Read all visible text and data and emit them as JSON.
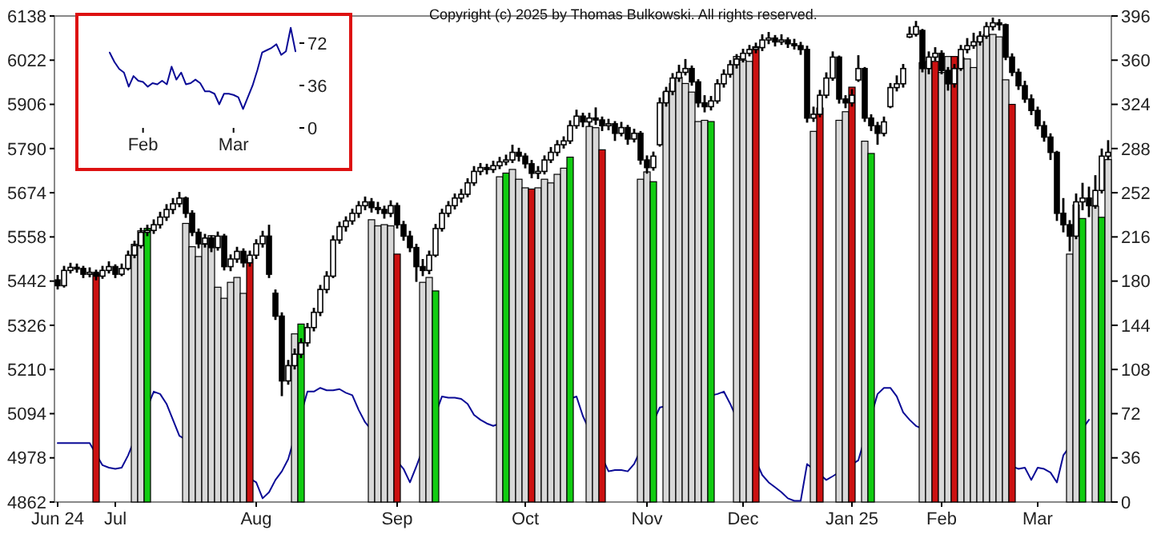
{
  "chart_data": [
    {
      "type": "candlestick",
      "categories": [
        "Jun 24",
        null,
        null,
        null,
        null,
        null,
        null,
        null,
        null,
        "Jul",
        null,
        null,
        null,
        null,
        null,
        null,
        null,
        null,
        null,
        null,
        null,
        null,
        null,
        null,
        null,
        null,
        null,
        null,
        null,
        null,
        null,
        "Aug",
        null,
        null,
        null,
        null,
        null,
        null,
        null,
        null,
        null,
        null,
        null,
        null,
        null,
        null,
        null,
        null,
        null,
        null,
        null,
        null,
        null,
        "Sep",
        null,
        null,
        null,
        null,
        null,
        null,
        null,
        null,
        null,
        null,
        null,
        null,
        null,
        null,
        null,
        null,
        null,
        null,
        null,
        "Oct",
        null,
        null,
        null,
        null,
        null,
        null,
        null,
        null,
        null,
        null,
        null,
        null,
        null,
        null,
        null,
        null,
        null,
        null,
        "Nov",
        null,
        null,
        null,
        null,
        null,
        null,
        null,
        null,
        null,
        null,
        null,
        null,
        null,
        null,
        "Dec",
        null,
        null,
        null,
        null,
        null,
        null,
        null,
        null,
        null,
        null,
        null,
        null,
        null,
        null,
        null,
        null,
        "Jan 25",
        null,
        null,
        null,
        null,
        null,
        null,
        null,
        null,
        null,
        null,
        null,
        null,
        null,
        "Feb",
        null,
        null,
        null,
        null,
        null,
        null,
        null,
        null,
        null,
        null,
        null,
        null,
        null,
        null,
        "Mar",
        null,
        null,
        null,
        null,
        null,
        null,
        null,
        null,
        null,
        null,
        null
      ],
      "ohlc": [
        [
          5445,
          5458,
          5420,
          5430
        ],
        [
          5430,
          5482,
          5425,
          5470
        ],
        [
          5470,
          5490,
          5462,
          5478
        ],
        [
          5478,
          5488,
          5464,
          5475
        ],
        [
          5475,
          5482,
          5450,
          5460
        ],
        [
          5460,
          5478,
          5452,
          5465
        ],
        [
          5465,
          5472,
          5444,
          5455
        ],
        [
          5455,
          5482,
          5448,
          5470
        ],
        [
          5470,
          5494,
          5462,
          5480
        ],
        [
          5480,
          5486,
          5450,
          5460
        ],
        [
          5460,
          5488,
          5455,
          5475
        ],
        [
          5475,
          5522,
          5470,
          5510
        ],
        [
          5510,
          5548,
          5502,
          5535
        ],
        [
          5535,
          5582,
          5528,
          5570
        ],
        [
          5570,
          5590,
          5560,
          5575
        ],
        [
          5575,
          5604,
          5566,
          5590
        ],
        [
          5590,
          5624,
          5580,
          5610
        ],
        [
          5610,
          5644,
          5600,
          5630
        ],
        [
          5630,
          5660,
          5618,
          5645
        ],
        [
          5645,
          5676,
          5636,
          5660
        ],
        [
          5660,
          5664,
          5608,
          5620
        ],
        [
          5620,
          5628,
          5560,
          5570
        ],
        [
          5570,
          5580,
          5528,
          5540
        ],
        [
          5540,
          5566,
          5530,
          5555
        ],
        [
          5555,
          5562,
          5518,
          5530
        ],
        [
          5530,
          5572,
          5522,
          5560
        ],
        [
          5560,
          5566,
          5470,
          5480
        ],
        [
          5480,
          5512,
          5468,
          5500
        ],
        [
          5500,
          5532,
          5490,
          5520
        ],
        [
          5520,
          5528,
          5478,
          5490
        ],
        [
          5490,
          5522,
          5480,
          5510
        ],
        [
          5510,
          5552,
          5500,
          5540
        ],
        [
          5540,
          5574,
          5530,
          5560
        ],
        [
          5560,
          5590,
          5450,
          5460
        ],
        [
          5410,
          5420,
          5340,
          5350
        ],
        [
          5350,
          5360,
          5140,
          5180
        ],
        [
          5180,
          5235,
          5170,
          5220
        ],
        [
          5220,
          5265,
          5210,
          5250
        ],
        [
          5250,
          5292,
          5240,
          5280
        ],
        [
          5280,
          5332,
          5270,
          5320
        ],
        [
          5320,
          5372,
          5310,
          5360
        ],
        [
          5360,
          5432,
          5350,
          5420
        ],
        [
          5420,
          5468,
          5410,
          5455
        ],
        [
          5455,
          5562,
          5450,
          5550
        ],
        [
          5550,
          5598,
          5540,
          5585
        ],
        [
          5585,
          5612,
          5572,
          5600
        ],
        [
          5600,
          5632,
          5590,
          5620
        ],
        [
          5620,
          5652,
          5608,
          5640
        ],
        [
          5640,
          5664,
          5628,
          5650
        ],
        [
          5650,
          5660,
          5622,
          5635
        ],
        [
          5635,
          5650,
          5618,
          5630
        ],
        [
          5630,
          5640,
          5606,
          5620
        ],
        [
          5620,
          5654,
          5610,
          5640
        ],
        [
          5640,
          5648,
          5580,
          5590
        ],
        [
          5590,
          5600,
          5548,
          5560
        ],
        [
          5560,
          5574,
          5518,
          5530
        ],
        [
          5530,
          5540,
          5440,
          5480
        ],
        [
          5480,
          5500,
          5455,
          5470
        ],
        [
          5470,
          5522,
          5460,
          5510
        ],
        [
          5510,
          5592,
          5505,
          5580
        ],
        [
          5580,
          5632,
          5572,
          5620
        ],
        [
          5620,
          5652,
          5610,
          5640
        ],
        [
          5640,
          5672,
          5630,
          5660
        ],
        [
          5660,
          5684,
          5648,
          5670
        ],
        [
          5670,
          5712,
          5662,
          5700
        ],
        [
          5700,
          5744,
          5692,
          5730
        ],
        [
          5730,
          5752,
          5720,
          5740
        ],
        [
          5740,
          5750,
          5722,
          5735
        ],
        [
          5735,
          5758,
          5726,
          5745
        ],
        [
          5745,
          5768,
          5736,
          5755
        ],
        [
          5755,
          5774,
          5746,
          5760
        ],
        [
          5760,
          5800,
          5752,
          5780
        ],
        [
          5780,
          5792,
          5756,
          5770
        ],
        [
          5770,
          5778,
          5738,
          5750
        ],
        [
          5750,
          5760,
          5712,
          5725
        ],
        [
          5725,
          5744,
          5710,
          5730
        ],
        [
          5730,
          5772,
          5722,
          5760
        ],
        [
          5760,
          5794,
          5752,
          5780
        ],
        [
          5780,
          5812,
          5770,
          5800
        ],
        [
          5800,
          5822,
          5790,
          5810
        ],
        [
          5810,
          5864,
          5802,
          5850
        ],
        [
          5850,
          5892,
          5842,
          5875
        ],
        [
          5875,
          5884,
          5846,
          5860
        ],
        [
          5860,
          5884,
          5848,
          5870
        ],
        [
          5870,
          5898,
          5852,
          5865
        ],
        [
          5865,
          5874,
          5836,
          5850
        ],
        [
          5850,
          5868,
          5838,
          5855
        ],
        [
          5855,
          5862,
          5810,
          5830
        ],
        [
          5830,
          5860,
          5822,
          5845
        ],
        [
          5845,
          5852,
          5800,
          5815
        ],
        [
          5815,
          5842,
          5806,
          5830
        ],
        [
          5830,
          5836,
          5748,
          5760
        ],
        [
          5760,
          5772,
          5724,
          5740
        ],
        [
          5740,
          5782,
          5732,
          5770
        ],
        [
          5800,
          5924,
          5795,
          5910
        ],
        [
          5910,
          5952,
          5900,
          5940
        ],
        [
          5940,
          5988,
          5930,
          5975
        ],
        [
          5975,
          6010,
          5965,
          5990
        ],
        [
          5990,
          6025,
          5982,
          6000
        ],
        [
          6000,
          6008,
          5955,
          5965
        ],
        [
          5965,
          5972,
          5898,
          5910
        ],
        [
          5910,
          5930,
          5885,
          5900
        ],
        [
          5900,
          5928,
          5890,
          5915
        ],
        [
          5915,
          5972,
          5908,
          5960
        ],
        [
          5960,
          5998,
          5950,
          5985
        ],
        [
          5985,
          6022,
          5976,
          6010
        ],
        [
          6010,
          6038,
          6000,
          6025
        ],
        [
          6025,
          6052,
          6016,
          6040
        ],
        [
          6040,
          6062,
          6032,
          6050
        ],
        [
          6050,
          6068,
          6040,
          6055
        ],
        [
          6055,
          6090,
          6046,
          6075
        ],
        [
          6075,
          6096,
          6064,
          6080
        ],
        [
          6080,
          6088,
          6058,
          6070
        ],
        [
          6070,
          6090,
          6062,
          6075
        ],
        [
          6075,
          6082,
          6054,
          6065
        ],
        [
          6065,
          6078,
          6050,
          6060
        ],
        [
          6060,
          6070,
          6036,
          6050
        ],
        [
          6050,
          6060,
          5858,
          5870
        ],
        [
          5870,
          5900,
          5860,
          5880
        ],
        [
          5880,
          5944,
          5872,
          5930
        ],
        [
          5930,
          5990,
          5922,
          5975
        ],
        [
          5975,
          6045,
          5968,
          6030
        ],
        [
          6030,
          6034,
          5908,
          5920
        ],
        [
          5920,
          5930,
          5896,
          5910
        ],
        [
          5910,
          5946,
          5900,
          5930
        ],
        [
          5970,
          6035,
          5965,
          6000
        ],
        [
          6000,
          6004,
          5860,
          5870
        ],
        [
          5870,
          5880,
          5836,
          5850
        ],
        [
          5850,
          5860,
          5800,
          5830
        ],
        [
          5830,
          5874,
          5822,
          5860
        ],
        [
          5900,
          5962,
          5896,
          5950
        ],
        [
          5950,
          5982,
          5940,
          5960
        ],
        [
          5960,
          6012,
          5950,
          6000
        ],
        [
          6083,
          6110,
          6080,
          6090
        ],
        [
          6090,
          6125,
          6084,
          6110
        ],
        [
          6100,
          6104,
          5990,
          6000
        ],
        [
          6000,
          6045,
          5985,
          6030
        ],
        [
          6030,
          6056,
          6020,
          6040
        ],
        [
          6040,
          6048,
          5985,
          5995
        ],
        [
          5995,
          6004,
          5942,
          5960
        ],
        [
          5960,
          6012,
          5950,
          6000
        ],
        [
          6000,
          6062,
          5994,
          6050
        ],
        [
          6050,
          6080,
          6040,
          6060
        ],
        [
          6060,
          6094,
          6052,
          6070
        ],
        [
          6070,
          6098,
          6060,
          6085
        ],
        [
          6085,
          6122,
          6078,
          6110
        ],
        [
          6110,
          6134,
          6100,
          6120
        ],
        [
          6120,
          6130,
          6100,
          6115
        ],
        [
          6115,
          6118,
          6022,
          6030
        ],
        [
          6030,
          6040,
          5980,
          5990
        ],
        [
          5990,
          6000,
          5944,
          5955
        ],
        [
          5955,
          5968,
          5910,
          5920
        ],
        [
          5920,
          5932,
          5878,
          5890
        ],
        [
          5890,
          5900,
          5840,
          5850
        ],
        [
          5850,
          5862,
          5808,
          5820
        ],
        [
          5820,
          5830,
          5760,
          5780
        ],
        [
          5780,
          5784,
          5600,
          5620
        ],
        [
          5620,
          5660,
          5570,
          5590
        ],
        [
          5590,
          5602,
          5520,
          5560
        ],
        [
          5560,
          5672,
          5552,
          5650
        ],
        [
          5650,
          5700,
          5628,
          5660
        ],
        [
          5660,
          5690,
          5610,
          5640
        ],
        [
          5640,
          5720,
          5632,
          5680
        ],
        [
          5680,
          5790,
          5672,
          5770
        ],
        [
          5770,
          5812,
          5760,
          5780
        ]
      ],
      "ylim": [
        4862,
        6138
      ],
      "yticks": [
        4862,
        4978,
        5094,
        5210,
        5326,
        5442,
        5558,
        5674,
        5790,
        5906,
        6022,
        6138
      ],
      "y2lim": [
        0,
        396
      ],
      "y2ticks": [
        0,
        36,
        72,
        108,
        144,
        180,
        216,
        252,
        288,
        324,
        360,
        396
      ],
      "series": [
        {
          "type": "line",
          "axis": "y2",
          "color": "#0a0a96",
          "values": [
            48,
            48,
            48,
            48,
            48,
            48,
            null,
            30,
            28,
            27,
            28,
            38,
            null,
            null,
            null,
            90,
            88,
            80,
            67,
            54,
            null,
            null,
            null,
            null,
            null,
            null,
            null,
            null,
            null,
            null,
            null,
            16,
            3,
            8,
            18,
            25,
            35,
            null,
            null,
            90,
            90,
            93,
            91,
            91,
            92,
            89,
            87,
            75,
            65,
            null,
            null,
            null,
            null,
            null,
            27,
            16,
            29,
            null,
            null,
            null,
            86,
            85,
            85,
            84,
            80,
            71,
            67,
            64,
            62,
            null,
            null,
            null,
            null,
            null,
            null,
            null,
            null,
            null,
            null,
            null,
            null,
            86,
            70,
            null,
            null,
            null,
            25,
            26,
            26,
            25,
            31,
            null,
            null,
            null,
            77,
            null,
            null,
            null,
            null,
            null,
            null,
            null,
            null,
            88,
            90,
            80,
            null,
            null,
            null,
            null,
            22,
            16,
            12,
            8,
            3,
            1,
            1,
            31,
            null,
            null,
            18,
            21,
            null,
            null,
            null,
            34,
            null,
            null,
            88,
            93,
            93,
            86,
            73,
            67,
            62,
            null,
            null,
            null,
            null,
            null,
            null,
            null,
            null,
            null,
            null,
            null,
            null,
            null,
            null,
            null,
            27,
            28,
            18,
            28,
            27,
            24,
            16,
            38,
            null,
            null,
            null,
            67,
            null,
            null,
            null
          ]
        },
        {
          "type": "bar",
          "axis": "y2",
          "values": [
            null,
            null,
            null,
            null,
            null,
            null,
            186,
            null,
            null,
            null,
            null,
            null,
            210,
            221,
            223,
            null,
            null,
            null,
            null,
            null,
            227,
            208,
            200,
            210,
            217,
            175,
            166,
            179,
            183,
            170,
            198,
            null,
            null,
            null,
            null,
            null,
            null,
            137,
            145,
            null,
            null,
            null,
            null,
            null,
            null,
            null,
            null,
            null,
            null,
            230,
            225,
            226,
            225,
            202,
            null,
            null,
            null,
            179,
            183,
            172,
            null,
            null,
            null,
            null,
            null,
            null,
            null,
            null,
            null,
            265,
            268,
            271,
            263,
            256,
            255,
            256,
            263,
            260,
            267,
            272,
            281,
            null,
            null,
            306,
            305,
            287,
            null,
            null,
            null,
            null,
            null,
            263,
            269,
            261,
            null,
            334,
            341,
            346,
            341,
            334,
            310,
            311,
            310,
            null,
            null,
            null,
            363,
            360,
            359,
            371,
            null,
            null,
            null,
            null,
            null,
            null,
            null,
            null,
            302,
            321,
            null,
            null,
            311,
            318,
            338,
            null,
            294,
            284,
            null,
            null,
            null,
            null,
            null,
            null,
            null,
            358,
            359,
            359,
            350,
            363,
            363,
            362,
            361,
            354,
            379,
            381,
            381,
            379,
            344,
            324,
            null,
            null,
            null,
            null,
            null,
            null,
            null,
            null,
            202,
            242,
            231,
            null,
            241,
            232,
            279
          ],
          "colors": [
            null,
            null,
            null,
            null,
            null,
            null,
            "#cc1111",
            null,
            null,
            null,
            null,
            null,
            "#d8d8d8",
            "#d8d8d8",
            "#11cc11",
            null,
            null,
            null,
            null,
            null,
            "#d8d8d8",
            "#d8d8d8",
            "#d8d8d8",
            "#d8d8d8",
            "#d8d8d8",
            "#d8d8d8",
            "#d8d8d8",
            "#d8d8d8",
            "#d8d8d8",
            "#d8d8d8",
            "#cc1111",
            null,
            null,
            null,
            null,
            null,
            null,
            "#d8d8d8",
            "#11cc11",
            null,
            null,
            null,
            null,
            null,
            null,
            null,
            null,
            null,
            null,
            "#d8d8d8",
            "#d8d8d8",
            "#d8d8d8",
            "#d8d8d8",
            "#cc1111",
            null,
            null,
            null,
            "#d8d8d8",
            "#d8d8d8",
            "#11cc11",
            null,
            null,
            null,
            null,
            null,
            null,
            null,
            null,
            null,
            "#d8d8d8",
            "#11cc11",
            "#d8d8d8",
            "#d8d8d8",
            "#d8d8d8",
            "#cc1111",
            "#d8d8d8",
            "#d8d8d8",
            "#d8d8d8",
            "#d8d8d8",
            "#d8d8d8",
            "#11cc11",
            null,
            null,
            "#d8d8d8",
            "#d8d8d8",
            "#cc1111",
            null,
            null,
            null,
            null,
            null,
            "#d8d8d8",
            "#d8d8d8",
            "#11cc11",
            null,
            "#d8d8d8",
            "#d8d8d8",
            "#d8d8d8",
            "#d8d8d8",
            "#d8d8d8",
            "#d8d8d8",
            "#d8d8d8",
            "#11cc11",
            null,
            null,
            null,
            "#d8d8d8",
            "#d8d8d8",
            "#d8d8d8",
            "#cc1111",
            null,
            null,
            null,
            null,
            null,
            null,
            null,
            null,
            "#d8d8d8",
            "#cc1111",
            null,
            null,
            "#d8d8d8",
            "#d8d8d8",
            "#cc1111",
            null,
            "#d8d8d8",
            "#11cc11",
            null,
            null,
            null,
            null,
            null,
            null,
            null,
            "#d8d8d8",
            "#d8d8d8",
            "#cc1111",
            "#d8d8d8",
            "#d8d8d8",
            "#cc1111",
            "#d8d8d8",
            "#d8d8d8",
            "#d8d8d8",
            "#d8d8d8",
            "#d8d8d8",
            "#d8d8d8",
            "#d8d8d8",
            "#d8d8d8",
            "#cc1111",
            null,
            null,
            null,
            null,
            null,
            null,
            null,
            null,
            "#d8d8d8",
            "#d8d8d8",
            "#11cc11",
            null,
            "#d8d8d8",
            "#11cc11",
            "#d8d8d8"
          ]
        }
      ],
      "annotations": [
        "Copyright (c) 2025 by Thomas Bulkowski. All rights reserved."
      ]
    },
    {
      "type": "line",
      "categories": [
        null,
        null,
        null,
        null,
        null,
        null,
        null,
        "Feb",
        null,
        null,
        null,
        null,
        null,
        null,
        null,
        null,
        null,
        null,
        null,
        null,
        null,
        null,
        null,
        null,
        null,
        null,
        "Mar",
        null,
        null,
        null,
        null,
        null,
        null,
        null,
        null,
        null,
        null,
        null,
        null,
        null
      ],
      "ylim": [
        0,
        95
      ],
      "yticks": [
        0,
        36,
        72
      ],
      "series": [
        {
          "color": "#0a0a96",
          "values": [
            64,
            56,
            50,
            47,
            35,
            44,
            40,
            39,
            35,
            38,
            37,
            40,
            37,
            52,
            41,
            47,
            37,
            38,
            41,
            38,
            31,
            31,
            29,
            20,
            29,
            29,
            28,
            26,
            16,
            26,
            36,
            49,
            64,
            66,
            68,
            71,
            62,
            65,
            85,
            65
          ]
        }
      ]
    }
  ]
}
